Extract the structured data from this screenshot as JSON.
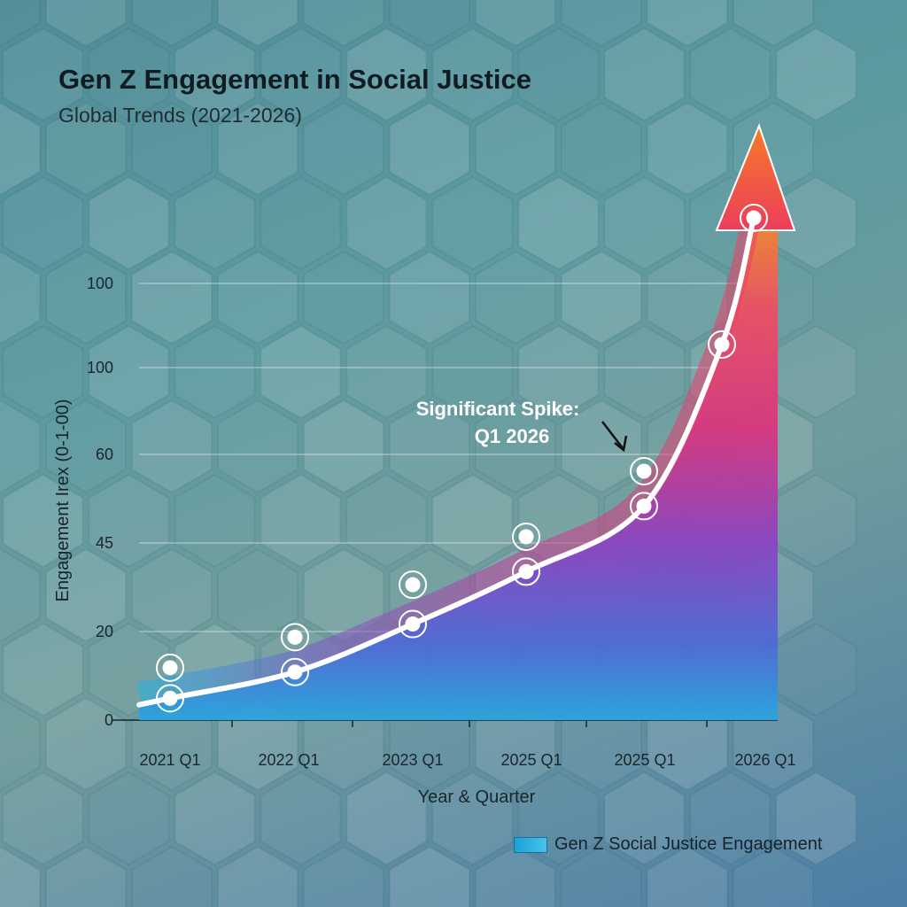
{
  "chart_data": {
    "type": "area",
    "title": "Gen Z Engagement in Social Justice",
    "subtitle": "Global Trends (2021-2026)",
    "xlabel": "Year & Quarter",
    "ylabel": "Engagement Irex (0-1-00)",
    "y_tick_labels": [
      "0",
      "20",
      "45",
      "60",
      "100",
      "100"
    ],
    "categories": [
      "2021 Q1",
      "2022 Q1",
      "2023 Q1",
      "2025 Q1",
      "2025 Q1",
      "",
      "2026 Q1"
    ],
    "ylim": [
      0,
      120
    ],
    "grid": true,
    "legend_position": "bottom-right",
    "series": [
      {
        "name": "Gen Z Social Justice Engagement",
        "values": [
          5,
          11,
          22,
          34,
          49,
          86,
          115
        ],
        "markers_upper": [
          12,
          19,
          31,
          42,
          57
        ]
      }
    ],
    "annotations": [
      {
        "text_line1": "Significant Spike:",
        "text_line2": "Q1 2026",
        "points_to": "2025 Q1"
      }
    ],
    "colors": {
      "area_top": "#f07a2a",
      "area_mid": "#e0347c",
      "area_low": "#8a43c0",
      "area_bottom": "#2aa6df",
      "line": "#ffffff",
      "arrow_tip": "#f57c27"
    }
  }
}
